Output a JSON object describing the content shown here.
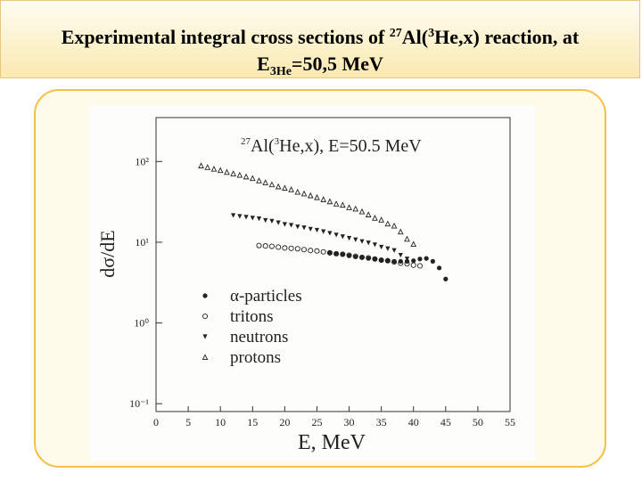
{
  "slide_title": {
    "line1": [
      "Experimental integral cross sections of ",
      "27",
      "Al(",
      "3",
      "He,x) reaction, at"
    ],
    "line2": [
      "E",
      "3He",
      "=50,5 MeV"
    ]
  },
  "chart_data": {
    "type": "scatter",
    "annotation": [
      "27",
      "Al(",
      "3",
      "He,x), E=50.5 MeV"
    ],
    "ylabel": "dσ/dE",
    "xlabel": "E, MeV",
    "log_y": true,
    "grid": false,
    "legend_loc": "lower left",
    "xlim": [
      0,
      55
    ],
    "xticks": [
      0,
      5,
      10,
      15,
      20,
      25,
      30,
      35,
      40,
      45,
      50,
      55
    ],
    "ylim": [
      0.08,
      350
    ],
    "yticks": [
      {
        "value": 100,
        "label": "10²"
      },
      {
        "value": 10,
        "label": "10¹"
      },
      {
        "value": 1,
        "label": "10⁰"
      },
      {
        "value": 0.1,
        "label": "10⁻¹"
      }
    ],
    "series": [
      {
        "name": "α-particles",
        "color": "#222222",
        "marker": "filled-circle",
        "x": [
          27,
          28,
          29,
          30,
          31,
          32,
          33,
          34,
          35,
          36,
          37,
          38,
          39,
          40,
          41,
          42,
          43,
          44,
          45
        ],
        "values": [
          7.4,
          7.2,
          7.1,
          6.8,
          6.6,
          6.5,
          6.3,
          6.2,
          6.0,
          5.9,
          5.8,
          5.8,
          5.8,
          5.9,
          6.2,
          6.3,
          5.8,
          4.8,
          3.5
        ]
      },
      {
        "name": "tritons",
        "color": "#222222",
        "marker": "open-circle",
        "x": [
          16,
          17,
          18,
          19,
          20,
          21,
          22,
          23,
          24,
          25,
          26,
          27,
          28,
          29,
          30,
          31,
          32,
          33,
          34,
          35,
          36,
          37,
          38,
          39,
          40,
          41
        ],
        "values": [
          9.1,
          9.0,
          8.9,
          8.7,
          8.5,
          8.4,
          8.3,
          8.1,
          7.9,
          7.8,
          7.6,
          7.4,
          7.2,
          7.1,
          6.9,
          6.7,
          6.5,
          6.4,
          6.2,
          6.0,
          5.9,
          5.7,
          5.5,
          5.4,
          5.2,
          5.1
        ]
      },
      {
        "name": "neutrons",
        "color": "#222222",
        "marker": "filled-triangle-down",
        "x": [
          12,
          13,
          14,
          15,
          16,
          17,
          18,
          19,
          20,
          21,
          22,
          23,
          24,
          25,
          26,
          27,
          28,
          29,
          30,
          31,
          32,
          33,
          34,
          35,
          36,
          37,
          38,
          39
        ],
        "values": [
          21.4,
          20.9,
          20.4,
          19.9,
          19.5,
          18.6,
          18.2,
          17.4,
          16.6,
          16.2,
          15.5,
          15.1,
          14.5,
          14.1,
          13.5,
          12.9,
          12.3,
          11.7,
          11.2,
          10.7,
          10.2,
          9.8,
          9.3,
          8.7,
          8.3,
          7.9,
          6.9,
          6.2
        ]
      },
      {
        "name": "protons",
        "color": "#222222",
        "marker": "open-triangle",
        "x": [
          7,
          8,
          9,
          10,
          11,
          12,
          13,
          14,
          15,
          16,
          17,
          18,
          19,
          20,
          21,
          22,
          23,
          24,
          25,
          26,
          27,
          28,
          29,
          30,
          31,
          32,
          33,
          34,
          35,
          36,
          37,
          38,
          39,
          40
        ],
        "values": [
          89,
          85,
          81,
          78,
          74,
          71,
          68,
          65,
          62,
          58,
          55,
          52,
          49,
          47,
          45,
          42,
          40,
          38,
          36,
          34,
          32,
          30,
          29,
          27,
          26,
          24,
          22,
          20,
          19,
          17,
          16,
          13.5,
          11,
          9.5
        ]
      }
    ]
  }
}
